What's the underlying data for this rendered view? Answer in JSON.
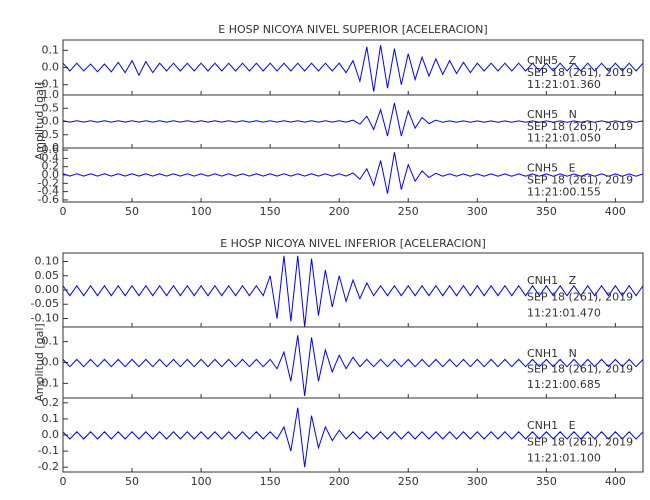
{
  "chart_data": [
    {
      "type": "line",
      "title": "E HOSP NICOYA NIVEL SUPERIOR [ACELERACION]",
      "y_label": "Amplitud [gal]",
      "xlim": [
        0,
        420
      ],
      "xticks": [
        0,
        50,
        100,
        150,
        200,
        250,
        300,
        350,
        400
      ],
      "x": [
        0,
        5,
        10,
        15,
        20,
        25,
        30,
        35,
        40,
        45,
        50,
        55,
        60,
        65,
        70,
        75,
        80,
        85,
        90,
        95,
        100,
        105,
        110,
        115,
        120,
        125,
        130,
        135,
        140,
        145,
        150,
        155,
        160,
        165,
        170,
        175,
        180,
        185,
        190,
        195,
        200,
        205,
        210,
        215,
        220,
        225,
        230,
        235,
        240,
        245,
        250,
        255,
        260,
        265,
        270,
        275,
        280,
        285,
        290,
        295,
        300,
        305,
        310,
        315,
        320,
        325,
        330,
        335,
        340,
        345,
        350,
        355,
        360,
        365,
        370,
        375,
        380,
        385,
        390,
        395,
        400,
        405,
        410,
        415,
        420
      ],
      "series": [
        {
          "name": "CNH5   Z",
          "date": "SEP 18 (261), 2019",
          "time": "11:21:01.360",
          "color": "#0000ff",
          "ylim": [
            -0.16,
            0.16
          ],
          "yticks": [
            -0.1,
            {
              "value": 0,
              "label": "0.0"
            },
            0.1
          ],
          "values": [
            0.025,
            0.02,
            0.025,
            0.02,
            0.02,
            0.025,
            0.02,
            0.025,
            0.03,
            0.03,
            0.04,
            0.045,
            0.035,
            0.03,
            0.025,
            0.02,
            0.025,
            0.02,
            0.025,
            0.02,
            0.025,
            0.02,
            0.025,
            0.02,
            0.025,
            0.02,
            0.025,
            0.02,
            0.025,
            0.02,
            0.025,
            0.02,
            0.025,
            0.02,
            0.025,
            0.02,
            0.025,
            0.02,
            0.025,
            0.02,
            0.025,
            0.03,
            0.04,
            0.08,
            0.12,
            0.14,
            0.13,
            0.12,
            0.11,
            0.1,
            0.08,
            0.07,
            0.06,
            0.05,
            0.05,
            0.04,
            0.04,
            0.035,
            0.03,
            0.03,
            0.025,
            0.02,
            0.025,
            0.02,
            0.025,
            0.02,
            0.025,
            0.02,
            0.025,
            0.02,
            0.025,
            0.02,
            0.025,
            0.02,
            0.025,
            0.02,
            0.025,
            0.02,
            0.025,
            0.02,
            0.025,
            0.02,
            0.025,
            0.02,
            0.025
          ]
        },
        {
          "name": "CNH5   N",
          "date": "SEP 18 (261), 2019",
          "time": "11:21:01.050",
          "color": "#0000ff",
          "ylim": [
            -1,
            1
          ],
          "yticks": [
            {
              "value": -1,
              "label": "-1.0"
            },
            -0.5,
            {
              "value": 0,
              "label": "0.0"
            },
            0.5,
            {
              "value": 1,
              "label": "1.0"
            }
          ],
          "values": [
            0.03,
            0.025,
            0.03,
            0.025,
            0.03,
            0.025,
            0.03,
            0.025,
            0.03,
            0.025,
            0.03,
            0.025,
            0.03,
            0.025,
            0.03,
            0.025,
            0.03,
            0.025,
            0.03,
            0.025,
            0.03,
            0.025,
            0.03,
            0.025,
            0.03,
            0.025,
            0.03,
            0.025,
            0.03,
            0.025,
            0.03,
            0.025,
            0.03,
            0.025,
            0.03,
            0.025,
            0.03,
            0.025,
            0.03,
            0.025,
            0.03,
            0.025,
            0.05,
            0.1,
            0.2,
            0.3,
            0.45,
            0.55,
            0.7,
            0.55,
            0.4,
            0.25,
            0.15,
            0.08,
            0.05,
            0.03,
            0.025,
            0.03,
            0.025,
            0.03,
            0.025,
            0.03,
            0.025,
            0.03,
            0.025,
            0.03,
            0.025,
            0.03,
            0.025,
            0.03,
            0.025,
            0.03,
            0.025,
            0.03,
            0.025,
            0.03,
            0.025,
            0.03,
            0.025,
            0.03,
            0.025,
            0.03,
            0.025,
            0.03,
            0.025
          ]
        },
        {
          "name": "CNH5   E",
          "date": "SEP 18 (261), 2019",
          "time": "11:21:00.155",
          "color": "#0000ff",
          "ylim": [
            -0.65,
            0.65
          ],
          "yticks": [
            -0.6,
            -0.4,
            -0.2,
            {
              "value": 0,
              "label": "0.0"
            },
            0.2,
            0.4,
            0.6
          ],
          "values": [
            0.03,
            0.025,
            0.03,
            0.025,
            0.03,
            0.025,
            0.03,
            0.025,
            0.03,
            0.025,
            0.03,
            0.025,
            0.03,
            0.025,
            0.03,
            0.025,
            0.03,
            0.025,
            0.03,
            0.025,
            0.03,
            0.025,
            0.03,
            0.025,
            0.03,
            0.025,
            0.03,
            0.025,
            0.03,
            0.025,
            0.03,
            0.025,
            0.03,
            0.025,
            0.03,
            0.025,
            0.03,
            0.025,
            0.03,
            0.025,
            0.03,
            0.025,
            0.05,
            0.1,
            0.15,
            0.25,
            0.35,
            0.45,
            0.55,
            0.35,
            0.25,
            0.15,
            0.1,
            0.06,
            0.04,
            0.03,
            0.025,
            0.03,
            0.025,
            0.03,
            0.025,
            0.03,
            0.025,
            0.03,
            0.025,
            0.03,
            0.025,
            0.03,
            0.025,
            0.03,
            0.025,
            0.03,
            0.025,
            0.03,
            0.025,
            0.03,
            0.025,
            0.03,
            0.025,
            0.03,
            0.025,
            0.03,
            0.025,
            0.03,
            0.025
          ]
        }
      ]
    },
    {
      "type": "line",
      "title": "E HOSP NICOYA NIVEL INFERIOR [ACELERACION]",
      "y_label": "Amplitud [gal]",
      "xlim": [
        0,
        420
      ],
      "xticks": [
        0,
        50,
        100,
        150,
        200,
        250,
        300,
        350,
        400
      ],
      "x": [
        0,
        5,
        10,
        15,
        20,
        25,
        30,
        35,
        40,
        45,
        50,
        55,
        60,
        65,
        70,
        75,
        80,
        85,
        90,
        95,
        100,
        105,
        110,
        115,
        120,
        125,
        130,
        135,
        140,
        145,
        150,
        155,
        160,
        165,
        170,
        175,
        180,
        185,
        190,
        195,
        200,
        205,
        210,
        215,
        220,
        225,
        230,
        235,
        240,
        245,
        250,
        255,
        260,
        265,
        270,
        275,
        280,
        285,
        290,
        295,
        300,
        305,
        310,
        315,
        320,
        325,
        330,
        335,
        340,
        345,
        350,
        355,
        360,
        365,
        370,
        375,
        380,
        385,
        390,
        395,
        400,
        405,
        410,
        415,
        420
      ],
      "series": [
        {
          "name": "CNH1   Z",
          "date": "SEP 18 (261), 2019",
          "time": "11:21:01.470",
          "color": "#0000ff",
          "ylim": [
            -0.13,
            0.13
          ],
          "yticks": [
            {
              "value": -0.1,
              "label": "-0.10"
            },
            -0.05,
            {
              "value": 0,
              "label": "0.00"
            },
            0.05,
            {
              "value": 0.1,
              "label": "0.10"
            }
          ],
          "values": [
            0.015,
            0.02,
            0.015,
            0.02,
            0.015,
            0.02,
            0.015,
            0.02,
            0.015,
            0.02,
            0.015,
            0.02,
            0.015,
            0.02,
            0.015,
            0.02,
            0.015,
            0.02,
            0.015,
            0.02,
            0.015,
            0.02,
            0.015,
            0.02,
            0.015,
            0.02,
            0.015,
            0.02,
            0.015,
            0.02,
            0.05,
            0.1,
            0.12,
            0.11,
            0.12,
            0.13,
            0.11,
            0.09,
            0.07,
            0.06,
            0.05,
            0.04,
            0.035,
            0.03,
            0.025,
            0.02,
            0.015,
            0.02,
            0.015,
            0.02,
            0.015,
            0.02,
            0.015,
            0.02,
            0.015,
            0.02,
            0.015,
            0.02,
            0.015,
            0.02,
            0.015,
            0.02,
            0.015,
            0.02,
            0.015,
            0.02,
            0.015,
            0.02,
            0.015,
            0.02,
            0.015,
            0.02,
            0.015,
            0.02,
            0.015,
            0.02,
            0.015,
            0.02,
            0.015,
            0.02,
            0.015,
            0.02,
            0.015,
            0.02,
            0.015
          ]
        },
        {
          "name": "CNH1   N",
          "date": "SEP 18 (261), 2019",
          "time": "11:21:00.685",
          "color": "#0000ff",
          "ylim": [
            -0.17,
            0.17
          ],
          "yticks": [
            -0.1,
            {
              "value": 0,
              "label": "0.0"
            },
            0.1
          ],
          "values": [
            0.015,
            0.02,
            0.015,
            0.02,
            0.015,
            0.02,
            0.015,
            0.02,
            0.015,
            0.02,
            0.015,
            0.02,
            0.015,
            0.02,
            0.015,
            0.02,
            0.015,
            0.02,
            0.015,
            0.02,
            0.015,
            0.02,
            0.015,
            0.02,
            0.015,
            0.02,
            0.015,
            0.02,
            0.015,
            0.02,
            0.015,
            0.03,
            0.05,
            0.09,
            0.13,
            0.16,
            0.12,
            0.09,
            0.06,
            0.045,
            0.035,
            0.03,
            0.025,
            0.02,
            0.015,
            0.02,
            0.015,
            0.02,
            0.015,
            0.02,
            0.015,
            0.02,
            0.015,
            0.02,
            0.015,
            0.02,
            0.015,
            0.02,
            0.015,
            0.02,
            0.015,
            0.02,
            0.015,
            0.02,
            0.015,
            0.02,
            0.015,
            0.02,
            0.015,
            0.02,
            0.015,
            0.02,
            0.015,
            0.02,
            0.015,
            0.02,
            0.015,
            0.02,
            0.015,
            0.02,
            0.015,
            0.02,
            0.015,
            0.02,
            0.015
          ]
        },
        {
          "name": "CNH1   E",
          "date": "SEP 18 (261), 2019",
          "time": "11:21:01.100",
          "color": "#0000ff",
          "ylim": [
            -0.23,
            0.23
          ],
          "yticks": [
            -0.2,
            -0.1,
            {
              "value": 0,
              "label": "0.0"
            },
            0.1,
            0.2
          ],
          "values": [
            0.02,
            0.025,
            0.02,
            0.025,
            0.02,
            0.025,
            0.02,
            0.025,
            0.02,
            0.025,
            0.02,
            0.025,
            0.02,
            0.025,
            0.02,
            0.025,
            0.02,
            0.025,
            0.02,
            0.025,
            0.02,
            0.025,
            0.02,
            0.025,
            0.02,
            0.025,
            0.02,
            0.025,
            0.02,
            0.025,
            0.02,
            0.025,
            0.05,
            0.1,
            0.17,
            0.2,
            0.12,
            0.08,
            0.05,
            0.035,
            0.03,
            0.025,
            0.02,
            0.025,
            0.02,
            0.025,
            0.02,
            0.025,
            0.02,
            0.025,
            0.02,
            0.025,
            0.02,
            0.025,
            0.02,
            0.025,
            0.02,
            0.025,
            0.02,
            0.025,
            0.02,
            0.025,
            0.02,
            0.025,
            0.02,
            0.025,
            0.02,
            0.025,
            0.02,
            0.025,
            0.02,
            0.025,
            0.02,
            0.025,
            0.02,
            0.025,
            0.02,
            0.025,
            0.02,
            0.025,
            0.02,
            0.025,
            0.02,
            0.025,
            0.02
          ]
        }
      ]
    }
  ]
}
